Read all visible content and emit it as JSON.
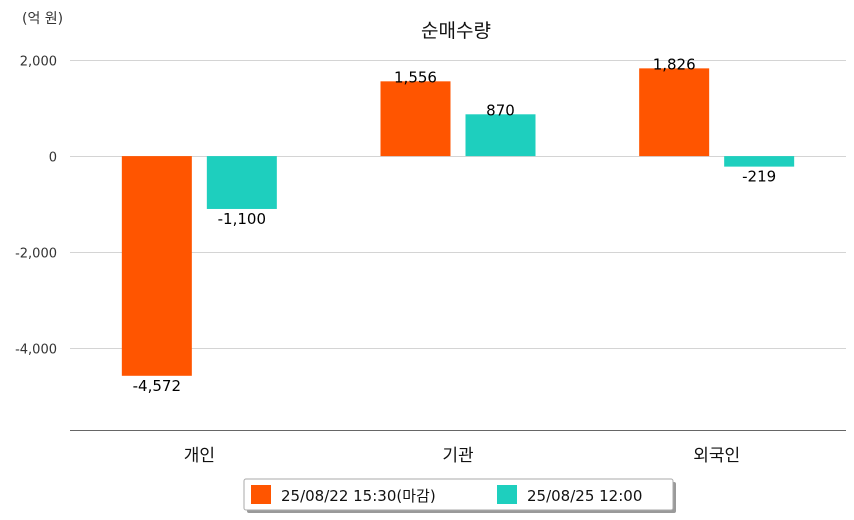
{
  "chart_data": {
    "type": "bar",
    "title": "순매수량",
    "unit_label": "(억 원)",
    "categories": [
      "개인",
      "기관",
      "외국인"
    ],
    "series": [
      {
        "name": "25/08/22 15:30(마감)",
        "color": "#ff5500",
        "values": [
          -4572,
          1556,
          1826
        ],
        "labels": [
          "-4,572",
          "1,556",
          "1,826"
        ]
      },
      {
        "name": "25/08/25 12:00",
        "color": "#1ecfbe",
        "values": [
          -1100,
          870,
          -219
        ],
        "labels": [
          "-1,100",
          "870",
          "-219"
        ]
      }
    ],
    "y_ticks": [
      2000,
      0,
      -2000,
      -4000
    ],
    "y_tick_labels": [
      "2,000",
      "0",
      "-2,000",
      "-4,000"
    ],
    "ylim": [
      -5700,
      2000
    ],
    "grid": true,
    "legend_position": "bottom"
  }
}
